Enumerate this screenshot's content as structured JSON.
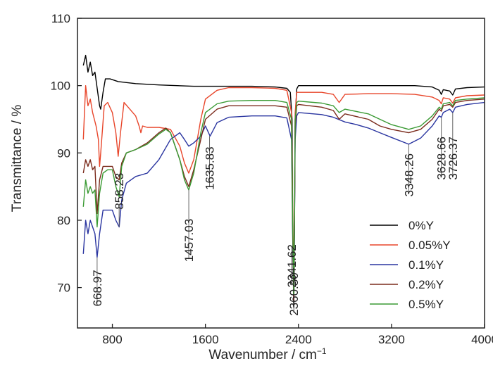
{
  "chart_data": {
    "type": "line",
    "xlabel": "Wavenumber / cm",
    "xlabel_sup": "−1",
    "ylabel": "Transmittance / %",
    "xlim": [
      500,
      4000
    ],
    "ylim": [
      64,
      110
    ],
    "xticks": [
      800,
      1600,
      2400,
      3200,
      4000
    ],
    "yticks": [
      70,
      80,
      90,
      100,
      110
    ],
    "grid": false,
    "legend_position": "lower-right",
    "series": [
      {
        "name": "0%Y",
        "color": "#000000",
        "points": [
          [
            550,
            103
          ],
          [
            570,
            104.5
          ],
          [
            590,
            102
          ],
          [
            610,
            103.5
          ],
          [
            630,
            101.5
          ],
          [
            650,
            102
          ],
          [
            670,
            99.5
          ],
          [
            690,
            97
          ],
          [
            700,
            96.5
          ],
          [
            720,
            99
          ],
          [
            740,
            101
          ],
          [
            780,
            101
          ],
          [
            850,
            100.6
          ],
          [
            1000,
            100.3
          ],
          [
            1200,
            100.1
          ],
          [
            1500,
            99.9
          ],
          [
            1800,
            99.9
          ],
          [
            2000,
            99.9
          ],
          [
            2200,
            99.8
          ],
          [
            2300,
            99.6
          ],
          [
            2330,
            99
          ],
          [
            2345,
            95
          ],
          [
            2352,
            75
          ],
          [
            2360,
            67
          ],
          [
            2366,
            80
          ],
          [
            2372,
            95
          ],
          [
            2385,
            99.5
          ],
          [
            2400,
            100
          ],
          [
            2600,
            100
          ],
          [
            2800,
            100
          ],
          [
            3000,
            100
          ],
          [
            3200,
            100
          ],
          [
            3400,
            100
          ],
          [
            3550,
            99.8
          ],
          [
            3610,
            99.3
          ],
          [
            3628,
            98.7
          ],
          [
            3645,
            99.4
          ],
          [
            3700,
            99.2
          ],
          [
            3726,
            98.6
          ],
          [
            3750,
            99.5
          ],
          [
            3850,
            99.7
          ],
          [
            4000,
            99.8
          ]
        ]
      },
      {
        "name": "0.05%Y",
        "color": "#e8452a",
        "points": [
          [
            550,
            92
          ],
          [
            570,
            100
          ],
          [
            590,
            97
          ],
          [
            610,
            98
          ],
          [
            630,
            96
          ],
          [
            660,
            94
          ],
          [
            680,
            92
          ],
          [
            690,
            88
          ],
          [
            700,
            90
          ],
          [
            730,
            97
          ],
          [
            760,
            97.5
          ],
          [
            800,
            96
          ],
          [
            830,
            93
          ],
          [
            850,
            89.5
          ],
          [
            870,
            93
          ],
          [
            900,
            97.5
          ],
          [
            950,
            96.5
          ],
          [
            1000,
            95.5
          ],
          [
            1030,
            94
          ],
          [
            1045,
            93
          ],
          [
            1060,
            94
          ],
          [
            1100,
            93.8
          ],
          [
            1200,
            93.8
          ],
          [
            1300,
            93.5
          ],
          [
            1380,
            91
          ],
          [
            1420,
            88.5
          ],
          [
            1457,
            87
          ],
          [
            1500,
            89
          ],
          [
            1560,
            95
          ],
          [
            1600,
            98
          ],
          [
            1700,
            99.3
          ],
          [
            1800,
            99.7
          ],
          [
            2000,
            99.7
          ],
          [
            2200,
            99.6
          ],
          [
            2300,
            99.3
          ],
          [
            2340,
            96
          ],
          [
            2352,
            80
          ],
          [
            2360,
            70
          ],
          [
            2366,
            82
          ],
          [
            2372,
            96
          ],
          [
            2385,
            99
          ],
          [
            2400,
            99
          ],
          [
            2600,
            99
          ],
          [
            2700,
            98.7
          ],
          [
            2750,
            97.5
          ],
          [
            2800,
            98.7
          ],
          [
            3000,
            98.8
          ],
          [
            3200,
            98.8
          ],
          [
            3400,
            98.7
          ],
          [
            3550,
            98.3
          ],
          [
            3610,
            97.8
          ],
          [
            3628,
            97.3
          ],
          [
            3645,
            98.2
          ],
          [
            3700,
            98
          ],
          [
            3726,
            97.4
          ],
          [
            3750,
            98.2
          ],
          [
            3850,
            98.5
          ],
          [
            4000,
            98.6
          ]
        ]
      },
      {
        "name": "0.1%Y",
        "color": "#2a35a0",
        "points": [
          [
            550,
            75
          ],
          [
            570,
            80
          ],
          [
            590,
            78
          ],
          [
            610,
            80
          ],
          [
            630,
            79
          ],
          [
            650,
            78
          ],
          [
            668.97,
            74.5
          ],
          [
            690,
            78
          ],
          [
            720,
            81.5
          ],
          [
            760,
            81.5
          ],
          [
            800,
            81.5
          ],
          [
            830,
            80
          ],
          [
            858.23,
            79
          ],
          [
            880,
            83
          ],
          [
            920,
            85.5
          ],
          [
            1000,
            86.5
          ],
          [
            1100,
            87
          ],
          [
            1200,
            89
          ],
          [
            1300,
            92
          ],
          [
            1380,
            93
          ],
          [
            1420,
            92
          ],
          [
            1457,
            91
          ],
          [
            1500,
            91.5
          ],
          [
            1560,
            92.5
          ],
          [
            1600,
            94
          ],
          [
            1640,
            92.5
          ],
          [
            1700,
            94.5
          ],
          [
            1800,
            95.3
          ],
          [
            2000,
            95.5
          ],
          [
            2200,
            95.5
          ],
          [
            2300,
            95.2
          ],
          [
            2340,
            92
          ],
          [
            2352,
            76
          ],
          [
            2360,
            68
          ],
          [
            2366,
            80
          ],
          [
            2372,
            92
          ],
          [
            2385,
            95.5
          ],
          [
            2400,
            96
          ],
          [
            2600,
            95.7
          ],
          [
            2700,
            95.3
          ],
          [
            2800,
            94.6
          ],
          [
            2900,
            94.2
          ],
          [
            3000,
            93.7
          ],
          [
            3100,
            93
          ],
          [
            3200,
            92.3
          ],
          [
            3348,
            91.3
          ],
          [
            3450,
            92.2
          ],
          [
            3550,
            94
          ],
          [
            3610,
            95.5
          ],
          [
            3628,
            95.3
          ],
          [
            3645,
            96
          ],
          [
            3700,
            96.5
          ],
          [
            3726,
            96
          ],
          [
            3750,
            96.8
          ],
          [
            3850,
            97.2
          ],
          [
            4000,
            97.5
          ]
        ]
      },
      {
        "name": "0.2%Y",
        "color": "#7b2b1c",
        "points": [
          [
            550,
            87
          ],
          [
            570,
            89
          ],
          [
            590,
            88
          ],
          [
            610,
            89
          ],
          [
            630,
            87.5
          ],
          [
            650,
            88
          ],
          [
            668.97,
            81
          ],
          [
            690,
            86
          ],
          [
            720,
            88
          ],
          [
            760,
            88
          ],
          [
            800,
            88
          ],
          [
            830,
            86.5
          ],
          [
            858.23,
            86
          ],
          [
            880,
            88.5
          ],
          [
            920,
            90
          ],
          [
            1000,
            90.5
          ],
          [
            1100,
            91.5
          ],
          [
            1200,
            93
          ],
          [
            1260,
            93.7
          ],
          [
            1300,
            93
          ],
          [
            1380,
            89
          ],
          [
            1420,
            86.5
          ],
          [
            1457,
            85
          ],
          [
            1500,
            87.5
          ],
          [
            1560,
            92
          ],
          [
            1600,
            95
          ],
          [
            1700,
            96.5
          ],
          [
            1800,
            97
          ],
          [
            2000,
            97
          ],
          [
            2200,
            97
          ],
          [
            2300,
            96.8
          ],
          [
            2340,
            94
          ],
          [
            2352,
            77
          ],
          [
            2360,
            68
          ],
          [
            2366,
            81
          ],
          [
            2372,
            94
          ],
          [
            2385,
            97
          ],
          [
            2400,
            97.2
          ],
          [
            2600,
            96.8
          ],
          [
            2700,
            96.3
          ],
          [
            2750,
            95
          ],
          [
            2800,
            95.8
          ],
          [
            3000,
            95
          ],
          [
            3100,
            94
          ],
          [
            3200,
            93.5
          ],
          [
            3348,
            93
          ],
          [
            3450,
            93.5
          ],
          [
            3550,
            95
          ],
          [
            3610,
            96.5
          ],
          [
            3628,
            96.2
          ],
          [
            3645,
            97
          ],
          [
            3700,
            97.2
          ],
          [
            3726,
            96.8
          ],
          [
            3750,
            97.5
          ],
          [
            3850,
            97.8
          ],
          [
            4000,
            98
          ]
        ]
      },
      {
        "name": "0.5%Y",
        "color": "#3a9a33",
        "points": [
          [
            550,
            82
          ],
          [
            570,
            86
          ],
          [
            590,
            84
          ],
          [
            610,
            85
          ],
          [
            630,
            84
          ],
          [
            650,
            84.5
          ],
          [
            668.97,
            79
          ],
          [
            690,
            84
          ],
          [
            720,
            87
          ],
          [
            760,
            87.5
          ],
          [
            800,
            87.5
          ],
          [
            830,
            85
          ],
          [
            858.23,
            83.5
          ],
          [
            880,
            88
          ],
          [
            920,
            90
          ],
          [
            1000,
            90.5
          ],
          [
            1100,
            91.3
          ],
          [
            1200,
            92.8
          ],
          [
            1260,
            93.5
          ],
          [
            1300,
            93
          ],
          [
            1380,
            89
          ],
          [
            1420,
            86
          ],
          [
            1457,
            84.5
          ],
          [
            1500,
            87
          ],
          [
            1560,
            93
          ],
          [
            1600,
            96
          ],
          [
            1700,
            97.3
          ],
          [
            1800,
            97.7
          ],
          [
            2000,
            97.8
          ],
          [
            2200,
            97.8
          ],
          [
            2300,
            97.5
          ],
          [
            2340,
            95
          ],
          [
            2352,
            78
          ],
          [
            2360,
            69
          ],
          [
            2366,
            82
          ],
          [
            2372,
            95
          ],
          [
            2385,
            97.5
          ],
          [
            2400,
            97.7
          ],
          [
            2600,
            97.4
          ],
          [
            2700,
            97
          ],
          [
            2750,
            96
          ],
          [
            2800,
            96.5
          ],
          [
            3000,
            95.8
          ],
          [
            3100,
            95
          ],
          [
            3200,
            94.2
          ],
          [
            3348,
            93.5
          ],
          [
            3450,
            94
          ],
          [
            3550,
            95.5
          ],
          [
            3610,
            96.8
          ],
          [
            3628,
            96.5
          ],
          [
            3645,
            97.3
          ],
          [
            3700,
            97.5
          ],
          [
            3726,
            97
          ],
          [
            3750,
            97.8
          ],
          [
            3850,
            98
          ],
          [
            4000,
            98.2
          ]
        ]
      }
    ],
    "annotations": [
      {
        "text": "668.97",
        "x": 668.97,
        "y": 74.5,
        "label_y": 67.2
      },
      {
        "text": "858.23",
        "x": 858.23,
        "y": 79,
        "label_y": 81.6
      },
      {
        "text": "1457.03",
        "x": 1457.03,
        "y": 84.5,
        "label_y": 73.8
      },
      {
        "text": "1635.83",
        "x": 1635.83,
        "y": 92.5,
        "label_y": 84.5
      },
      {
        "text": "2360.30",
        "x": 2360.3,
        "y": 67.5,
        "label_y": 65.8
      },
      {
        "text": "2341.62",
        "x": 2341.62,
        "y": 76,
        "label_y": 70
      },
      {
        "text": "3348.26",
        "x": 3348.26,
        "y": 91.3,
        "label_y": 83.5
      },
      {
        "text": "3628.66",
        "x": 3628.66,
        "y": 95.3,
        "label_y": 86
      },
      {
        "text": "3726.37",
        "x": 3726.37,
        "y": 96,
        "label_y": 86
      }
    ]
  }
}
